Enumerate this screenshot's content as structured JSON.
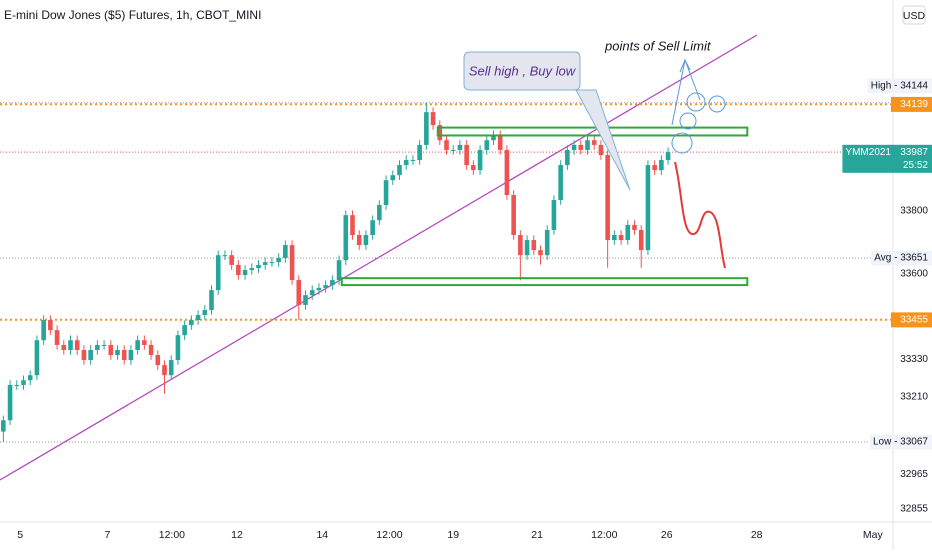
{
  "chart_data": {
    "type": "candlestick",
    "title": "E-mini Dow Jones ($5) Futures, 1h, CBOT_MINI",
    "currency": "USD",
    "up_color": "#26a69a",
    "down_color": "#ef5350",
    "ylim": [
      32813,
      34470
    ],
    "yticks": [
      32855,
      32965,
      33210,
      33330,
      33600,
      33800
    ],
    "xlim": [
      0,
      133
    ],
    "xticks": [
      {
        "value": 3,
        "label": "5"
      },
      {
        "value": 16,
        "label": "7"
      },
      {
        "value": 25.6,
        "label": "12:00"
      },
      {
        "value": 35.3,
        "label": "12"
      },
      {
        "value": 48,
        "label": "14"
      },
      {
        "value": 58,
        "label": "12:00"
      },
      {
        "value": 67.5,
        "label": "19"
      },
      {
        "value": 80,
        "label": "21"
      },
      {
        "value": 90,
        "label": "12:00"
      },
      {
        "value": 99.3,
        "label": "26"
      },
      {
        "value": 112.7,
        "label": "28"
      },
      {
        "value": 130,
        "label": "May"
      }
    ],
    "open": [
      33100,
      33136,
      33248,
      33248,
      33263,
      33279,
      33390,
      33454,
      33422,
      33375,
      33359,
      33390,
      33359,
      33327,
      33359,
      33375,
      33375,
      33343,
      33359,
      33327,
      33359,
      33390,
      33375,
      33343,
      33311,
      33279,
      33327,
      33406,
      33438,
      33454,
      33470,
      33486,
      33549,
      33660,
      33660,
      33629,
      33597,
      33613,
      33619,
      33629,
      33638,
      33638,
      33651,
      33692,
      33581,
      33502,
      33533,
      33549,
      33556,
      33565,
      33581,
      33644,
      33787,
      33724,
      33692,
      33724,
      33771,
      33819,
      33898,
      33914,
      33946,
      33962,
      33962,
      34010,
      34114,
      34073,
      34025,
      33994,
      33994,
      34010,
      33946,
      33930,
      33994,
      34025,
      34041,
      33994,
      33851,
      33724,
      33660,
      33708,
      33676,
      33660,
      33740,
      33835,
      33946,
      33994,
      34010,
      33994,
      34025,
      34010,
      33978,
      33708,
      33724,
      33708,
      33756,
      33740,
      33676,
      33946,
      33930,
      33962
    ],
    "high": [
      33151,
      33263,
      33263,
      33278,
      33294,
      33405,
      33469,
      33469,
      33437,
      33390,
      33405,
      33405,
      33374,
      33374,
      33390,
      33390,
      33390,
      33374,
      33374,
      33374,
      33405,
      33405,
      33390,
      33358,
      33326,
      33342,
      33421,
      33453,
      33469,
      33485,
      33501,
      33564,
      33675,
      33675,
      33675,
      33644,
      33628,
      33634,
      33644,
      33653,
      33653,
      33666,
      33707,
      33707,
      33596,
      33548,
      33564,
      33571,
      33580,
      33596,
      33659,
      33802,
      33802,
      33739,
      33739,
      33786,
      33834,
      33913,
      33929,
      33961,
      33977,
      33977,
      34025,
      34144,
      34129,
      34088,
      34040,
      34009,
      34025,
      34025,
      33961,
      34009,
      34040,
      34056,
      34056,
      34009,
      33866,
      33739,
      33723,
      33723,
      33691,
      33755,
      33850,
      33961,
      34009,
      34025,
      34025,
      34040,
      34040,
      34025,
      33993,
      33739,
      33739,
      33771,
      33771,
      33755,
      33961,
      33961,
      33977,
      34002
    ],
    "low": [
      33067,
      33121,
      33233,
      33233,
      33248,
      33264,
      33375,
      33407,
      33360,
      33344,
      33344,
      33344,
      33312,
      33312,
      33344,
      33360,
      33328,
      33328,
      33312,
      33312,
      33344,
      33360,
      33328,
      33296,
      33220,
      33264,
      33312,
      33391,
      33423,
      33439,
      33455,
      33471,
      33534,
      33645,
      33614,
      33582,
      33582,
      33598,
      33604,
      33614,
      33623,
      33623,
      33636,
      33566,
      33454,
      33487,
      33518,
      33534,
      33541,
      33550,
      33566,
      33629,
      33709,
      33677,
      33677,
      33709,
      33756,
      33804,
      33883,
      33899,
      33931,
      33947,
      33947,
      33995,
      34058,
      34010,
      33979,
      33979,
      33979,
      33931,
      33915,
      33915,
      33979,
      34010,
      33979,
      33836,
      33709,
      33580,
      33645,
      33661,
      33630,
      33645,
      33725,
      33820,
      33931,
      33979,
      33979,
      33979,
      33995,
      33963,
      33620,
      33693,
      33693,
      33693,
      33725,
      33620,
      33661,
      33915,
      33915,
      33947
    ],
    "close": [
      33136,
      33248,
      33248,
      33263,
      33279,
      33390,
      33454,
      33422,
      33375,
      33359,
      33390,
      33359,
      33327,
      33359,
      33375,
      33375,
      33343,
      33359,
      33327,
      33359,
      33390,
      33375,
      33343,
      33311,
      33279,
      33327,
      33406,
      33438,
      33454,
      33470,
      33486,
      33549,
      33660,
      33660,
      33629,
      33597,
      33613,
      33619,
      33629,
      33638,
      33638,
      33651,
      33692,
      33581,
      33502,
      33533,
      33549,
      33556,
      33565,
      33581,
      33644,
      33787,
      33724,
      33692,
      33724,
      33771,
      33819,
      33898,
      33914,
      33946,
      33962,
      33962,
      34010,
      34114,
      34073,
      34025,
      33994,
      33994,
      34010,
      33946,
      33930,
      33994,
      34025,
      34041,
      33994,
      33851,
      33724,
      33660,
      33708,
      33676,
      33660,
      33740,
      33835,
      33946,
      33994,
      34010,
      33994,
      34025,
      34010,
      33978,
      33708,
      33724,
      33708,
      33756,
      33740,
      33676,
      33946,
      33930,
      33962,
      33987
    ],
    "price_lines": [
      {
        "label": "High - 34144",
        "value": 34144,
        "color": "#9598a1",
        "box": "#f0f3fa"
      },
      {
        "value": 34139,
        "color": "#f7931a",
        "box": "#f7931a"
      },
      {
        "name": "YMM2021",
        "value": 33987,
        "countdown": "25:52",
        "color": "#ef5350",
        "box": "#26a69a"
      },
      {
        "label": "Avg - 33651",
        "value": 33651,
        "color": "#9598a1",
        "box": "#f0f3fa"
      },
      {
        "value": 33455,
        "color": "#f7931a",
        "box": "#f7931a"
      },
      {
        "label": "Low - 33067",
        "value": 33067,
        "color": "#9598a1",
        "box": "#f0f3fa"
      }
    ],
    "zones": [
      {
        "high": 34065,
        "low": 34040
      },
      {
        "high": 33587,
        "low": 33565
      }
    ],
    "annotations": [
      "Sell high , Buy low",
      "points of Sell Limit"
    ]
  }
}
